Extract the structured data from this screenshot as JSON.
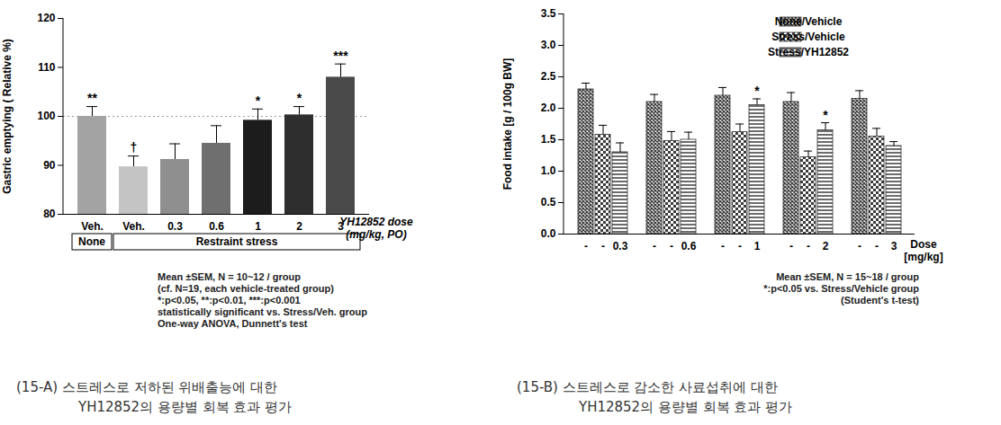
{
  "chart_data": [
    {
      "type": "bar",
      "categories": [
        "Veh.",
        "Veh.",
        "0.3",
        "0.6",
        "1",
        "2",
        "3"
      ],
      "values": [
        100,
        89.7,
        91.2,
        94.5,
        99.2,
        100.3,
        108
      ],
      "errors": [
        2,
        2.2,
        3.2,
        3.6,
        2.3,
        1.7,
        2.7
      ],
      "annotations": [
        "**",
        "†",
        null,
        null,
        "*",
        "*",
        "***"
      ],
      "colors": [
        "#a3a3a3",
        "#c4c4c4",
        "#8f8f8f",
        "#6f6f6f",
        "#1c1c1c",
        "#2e2e2e",
        "#4a4a4a"
      ],
      "ylabel": "Gastric emptying ( Relative %)",
      "xlabel": [
        "YH12852 dose",
        "(mg/kg, PO)"
      ],
      "ylim": [
        80,
        120
      ],
      "yticks": [
        80,
        90,
        100,
        110,
        120
      ],
      "reference_line": 100,
      "groups": [
        {
          "label": "None",
          "first": 0,
          "last": 0
        },
        {
          "label": "Restraint stress",
          "first": 1,
          "last": 6
        }
      ],
      "notes": [
        "Mean ±SEM, N = 10~12 / group",
        "(cf. N=19, each vehicle-treated group)",
        "*:p<0.05, **:p<0.01, ***:p<0.001",
        "statistically significant vs. Stress/Veh. group",
        "One-way ANOVA, Dunnett's test"
      ],
      "caption": [
        "(15-A) 스트레스로 저하된 위배출능에 대한",
        "YH12852의 용량별 회복 효과 평가"
      ]
    },
    {
      "type": "bar",
      "categories": [
        "0.3",
        "0.6",
        "1",
        "2",
        "3"
      ],
      "series": [
        {
          "name": "None/Vehicle",
          "color": "#3a3a3a",
          "tick_label": "-",
          "values": [
            2.3,
            2.1,
            2.2,
            2.1,
            2.15
          ],
          "errors": [
            0.1,
            0.12,
            0.13,
            0.15,
            0.13
          ],
          "annotations": [
            null,
            null,
            null,
            null,
            null
          ]
        },
        {
          "name": "Stress/Vehicle",
          "color": "#3a3a3a",
          "tick_label": "-",
          "values": [
            1.58,
            1.48,
            1.62,
            1.22,
            1.55
          ],
          "errors": [
            0.15,
            0.15,
            0.13,
            0.1,
            0.13
          ],
          "annotations": [
            null,
            null,
            null,
            null,
            null
          ]
        },
        {
          "name": "Stress/YH12852",
          "color": "#3a3a3a",
          "values": [
            1.3,
            1.5,
            2.05,
            1.65,
            1.4
          ],
          "errors": [
            0.15,
            0.12,
            0.1,
            0.12,
            0.07
          ],
          "annotations": [
            null,
            null,
            "*",
            "*",
            null
          ]
        }
      ],
      "ylabel": "Food intake [g / 100g BW]",
      "xlabel": [
        "Dose",
        "[mg/kg]"
      ],
      "ylim": [
        0,
        3.5
      ],
      "yticks": [
        {
          "value": 0,
          "label": "0.0"
        },
        {
          "value": 0.5,
          "label": "0.5"
        },
        {
          "value": 1,
          "label": "1.0"
        },
        {
          "value": 1.5,
          "label": "1.5"
        },
        {
          "value": 2,
          "label": "2.0"
        },
        {
          "value": 2.5,
          "label": "2.5"
        },
        {
          "value": 3,
          "label": "3.0"
        },
        {
          "value": 3.5,
          "label": "3.5"
        }
      ],
      "legend": "top-right",
      "notes": [
        "Mean ±SEM, N = 15~18 / group",
        "*:p<0.05 vs. Stress/Vehicle group",
        "(Student's t-test)"
      ],
      "caption": [
        "(15-B) 스트레스로 감소한 사료섭취에 대한",
        "YH12852의 용량별 회복 효과 평가"
      ]
    }
  ]
}
